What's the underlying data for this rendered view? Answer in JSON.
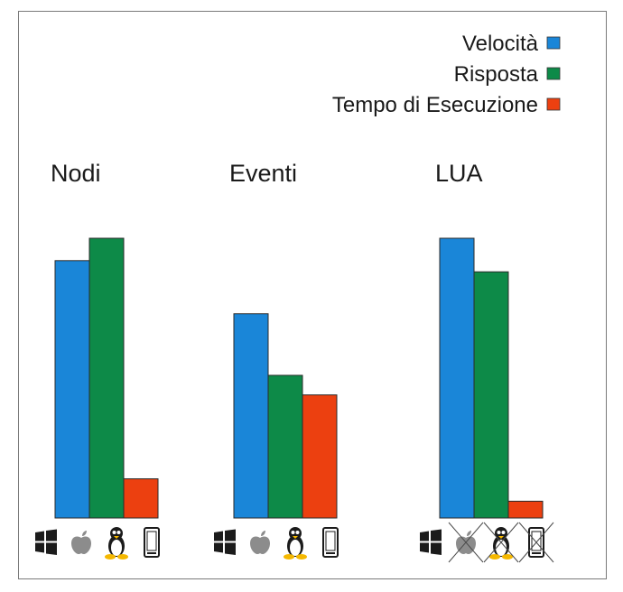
{
  "chart_data": {
    "type": "bar",
    "title": "",
    "xlabel": "",
    "ylabel": "",
    "ylim": [
      0,
      100
    ],
    "grid": false,
    "legend_position": "top-right",
    "series": [
      {
        "name": "Velocità",
        "color": "#1a86d8"
      },
      {
        "name": "Risposta",
        "color": "#0d8a48"
      },
      {
        "name": "Tempo di Esecuzione",
        "color": "#ec4010"
      }
    ],
    "groups": [
      {
        "title": "Nodi",
        "values": [
          92,
          100,
          14
        ],
        "platforms": [
          {
            "icon": "windows-icon",
            "crossed": false
          },
          {
            "icon": "apple-icon",
            "crossed": false
          },
          {
            "icon": "linux-tux-icon",
            "crossed": false
          },
          {
            "icon": "mobile-phone-icon",
            "crossed": false
          }
        ]
      },
      {
        "title": "Eventi",
        "values": [
          73,
          51,
          44
        ],
        "platforms": [
          {
            "icon": "windows-icon",
            "crossed": false
          },
          {
            "icon": "apple-icon",
            "crossed": false
          },
          {
            "icon": "linux-tux-icon",
            "crossed": false
          },
          {
            "icon": "mobile-phone-icon",
            "crossed": false
          }
        ]
      },
      {
        "title": "LUA",
        "values": [
          100,
          88,
          6
        ],
        "platforms": [
          {
            "icon": "windows-icon",
            "crossed": false
          },
          {
            "icon": "apple-icon",
            "crossed": true
          },
          {
            "icon": "linux-tux-icon",
            "crossed": true
          },
          {
            "icon": "mobile-phone-icon",
            "crossed": true
          }
        ]
      }
    ]
  }
}
